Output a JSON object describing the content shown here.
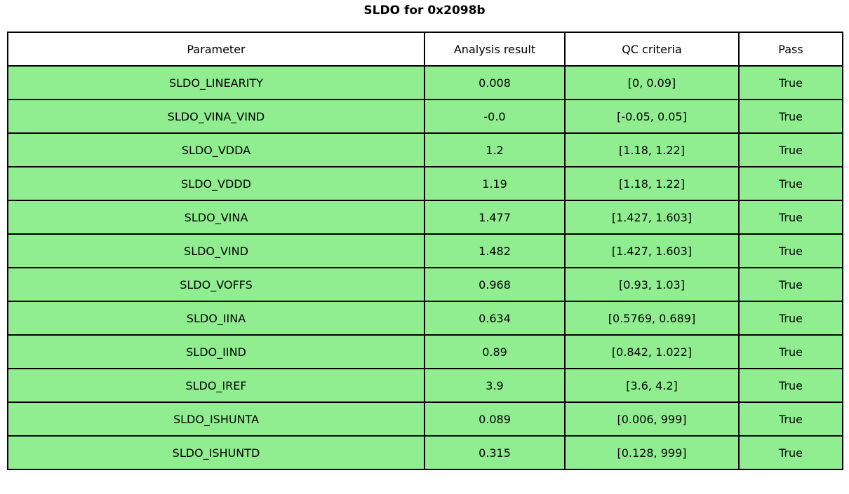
{
  "title": "SLDO for 0x2098b",
  "colors": {
    "row_pass_background": "#90EE90",
    "header_background": "#FFFFFF",
    "border": "#000000",
    "text": "#000000"
  },
  "chart_data": {
    "type": "table",
    "title": "SLDO for 0x2098b",
    "columns": [
      "Parameter",
      "Analysis result",
      "QC criteria",
      "Pass"
    ],
    "rows": [
      [
        "SLDO_LINEARITY",
        "0.008",
        "[0, 0.09]",
        "True"
      ],
      [
        "SLDO_VINA_VIND",
        "-0.0",
        "[-0.05, 0.05]",
        "True"
      ],
      [
        "SLDO_VDDA",
        "1.2",
        "[1.18, 1.22]",
        "True"
      ],
      [
        "SLDO_VDDD",
        "1.19",
        "[1.18, 1.22]",
        "True"
      ],
      [
        "SLDO_VINA",
        "1.477",
        "[1.427, 1.603]",
        "True"
      ],
      [
        "SLDO_VIND",
        "1.482",
        "[1.427, 1.603]",
        "True"
      ],
      [
        "SLDO_VOFFS",
        "0.968",
        "[0.93, 1.03]",
        "True"
      ],
      [
        "SLDO_IINA",
        "0.634",
        "[0.5769, 0.689]",
        "True"
      ],
      [
        "SLDO_IIND",
        "0.89",
        "[0.842, 1.022]",
        "True"
      ],
      [
        "SLDO_IREF",
        "3.9",
        "[3.6, 4.2]",
        "True"
      ],
      [
        "SLDO_ISHUNTA",
        "0.089",
        "[0.006, 999]",
        "True"
      ],
      [
        "SLDO_ISHUNTD",
        "0.315",
        "[0.128, 999]",
        "True"
      ]
    ]
  }
}
